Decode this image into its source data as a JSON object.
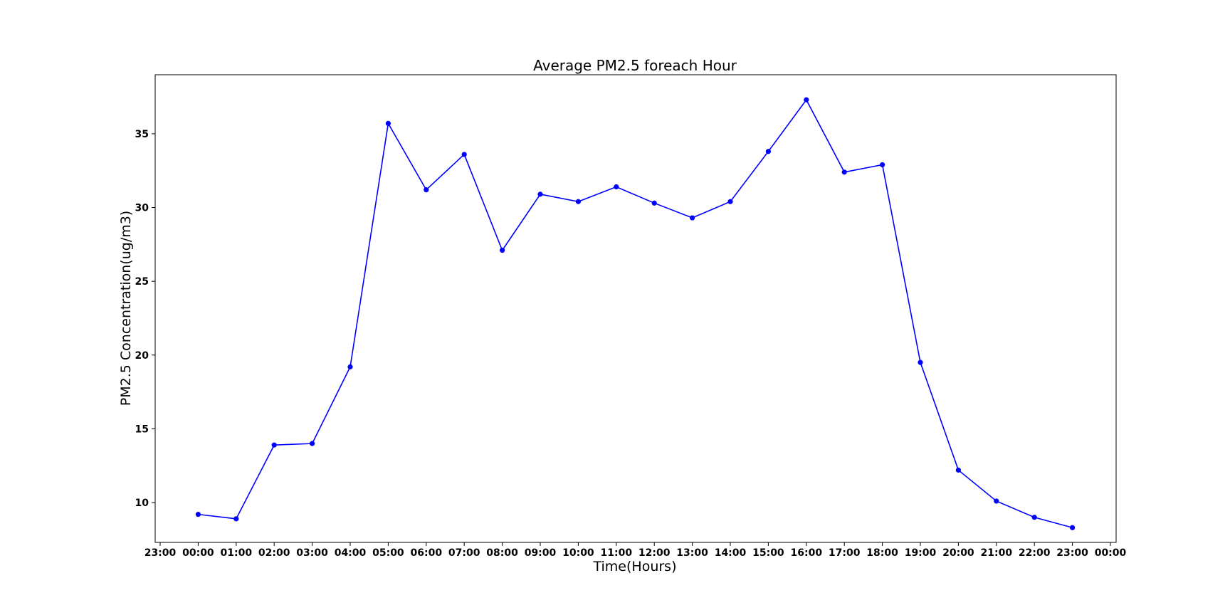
{
  "chart_data": {
    "type": "line",
    "title": "Average PM2.5 foreach Hour",
    "xlabel": "Time(Hours)",
    "ylabel": "PM2.5 Concentration(ug/m3)",
    "x_tick_labels": [
      "23:00",
      "00:00",
      "01:00",
      "02:00",
      "03:00",
      "04:00",
      "05:00",
      "06:00",
      "07:00",
      "08:00",
      "09:00",
      "10:00",
      "11:00",
      "12:00",
      "13:00",
      "14:00",
      "15:00",
      "16:00",
      "17:00",
      "18:00",
      "19:00",
      "20:00",
      "21:00",
      "22:00",
      "23:00",
      "00:00"
    ],
    "y_ticks": [
      10,
      15,
      20,
      25,
      30,
      35
    ],
    "ylim": [
      7.3,
      39.0
    ],
    "grid": false,
    "line_color": "#0000ff",
    "series": [
      {
        "x": [
          "00:00",
          "01:00",
          "02:00",
          "03:00",
          "04:00",
          "05:00",
          "06:00",
          "07:00",
          "08:00",
          "09:00",
          "10:00",
          "11:00",
          "12:00",
          "13:00",
          "14:00",
          "15:00",
          "16:00",
          "17:00",
          "18:00",
          "19:00",
          "20:00",
          "21:00",
          "22:00",
          "23:00"
        ],
        "values": [
          9.2,
          8.9,
          13.9,
          14.0,
          19.2,
          35.7,
          31.2,
          33.6,
          27.1,
          30.9,
          30.4,
          31.4,
          30.3,
          29.3,
          30.4,
          33.8,
          37.3,
          32.4,
          32.9,
          19.5,
          12.2,
          10.1,
          9.0,
          8.3
        ]
      }
    ]
  }
}
